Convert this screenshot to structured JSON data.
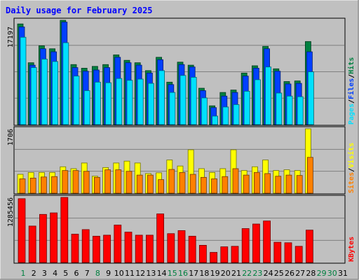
{
  "title": "Daily usage for February 2025",
  "colors": {
    "frame_bg": "#c0c0c0",
    "panel_bg": "#c0c0c0",
    "title_color": "#0000ff",
    "hits": "#008040",
    "files": "#0040ff",
    "pages": "#00e0ff",
    "visits": "#ffff00",
    "sites": "#ff8000",
    "kbytes": "#ff0000",
    "weekday_label": "#000000",
    "weekend_label": "#008040"
  },
  "legend": {
    "top": {
      "pages": "Pages",
      "files": "Files",
      "hits": "Hits",
      "sep": "/"
    },
    "middle": {
      "sites": "Sites",
      "visits": "Visits",
      "sep": "/"
    },
    "bottom": {
      "kbytes": "KBytes"
    }
  },
  "chart_data": {
    "type": "bar",
    "categories": [
      "1",
      "2",
      "3",
      "4",
      "5",
      "6",
      "7",
      "8",
      "9",
      "10",
      "11",
      "12",
      "13",
      "14",
      "15",
      "16",
      "17",
      "18",
      "19",
      "20",
      "21",
      "22",
      "23",
      "24",
      "25",
      "26",
      "27",
      "28",
      "29",
      "30",
      "31"
    ],
    "weekend_days": [
      1,
      8,
      15,
      16,
      22,
      23,
      29,
      30
    ],
    "panels": [
      {
        "name": "hits-files-pages",
        "ymax_label": "17197",
        "ymax": 17197,
        "series": [
          {
            "name": "Hits",
            "values": [
              16600,
              10200,
              13000,
              12500,
              17197,
              9900,
              9300,
              9600,
              9900,
              11500,
              10600,
              10200,
              8900,
              11100,
              7000,
              10300,
              9800,
              6000,
              3100,
              5300,
              5700,
              8500,
              9700,
              12900,
              9200,
              7100,
              7200,
              13700,
              0,
              0,
              0
            ]
          },
          {
            "name": "Files",
            "values": [
              16100,
              9800,
              12500,
              12000,
              16900,
              9400,
              8800,
              9000,
              9400,
              11100,
              10200,
              9800,
              8500,
              10700,
              6600,
              9900,
              9500,
              5600,
              2800,
              4700,
              5300,
              8000,
              9300,
              12500,
              8800,
              6700,
              6800,
              12000,
              0,
              0,
              0
            ]
          },
          {
            "name": "Pages",
            "values": [
              14400,
              9400,
              10800,
              10400,
              13500,
              8000,
              5600,
              7000,
              6900,
              7600,
              7300,
              7500,
              6800,
              8900,
              5300,
              8100,
              7800,
              4400,
              1400,
              2900,
              3300,
              5500,
              7400,
              9500,
              5200,
              4700,
              4600,
              8700,
              0,
              0,
              0
            ]
          }
        ]
      },
      {
        "name": "visits-sites",
        "ymax_label": "1706",
        "ymax": 1706,
        "series": [
          {
            "name": "Visits",
            "values": [
              500,
              550,
              550,
              550,
              700,
              650,
              800,
              450,
              680,
              800,
              850,
              800,
              520,
              540,
              880,
              720,
              1150,
              650,
              550,
              650,
              1150,
              600,
              700,
              880,
              600,
              620,
              600,
              1706,
              0,
              0,
              0
            ]
          },
          {
            "name": "Sites",
            "values": [
              380,
              400,
              430,
              440,
              600,
              600,
              580,
              420,
              620,
              620,
              580,
              480,
              480,
              360,
              630,
              550,
              500,
              420,
              380,
              440,
              650,
              480,
              550,
              520,
              450,
              480,
              470,
              950,
              0,
              0,
              0
            ]
          }
        ]
      },
      {
        "name": "kbytes",
        "ymax_label": "1285456",
        "ymax": 1285456,
        "series": [
          {
            "name": "KBytes",
            "values": [
              1260000,
              720000,
              950000,
              980000,
              1285456,
              560000,
              650000,
              520000,
              540000,
              740000,
              600000,
              540000,
              540000,
              960000,
              570000,
              630000,
              520000,
              340000,
              200000,
              310000,
              320000,
              670000,
              760000,
              820000,
              400000,
              390000,
              320000,
              640000,
              0,
              0,
              0
            ]
          }
        ]
      }
    ]
  }
}
